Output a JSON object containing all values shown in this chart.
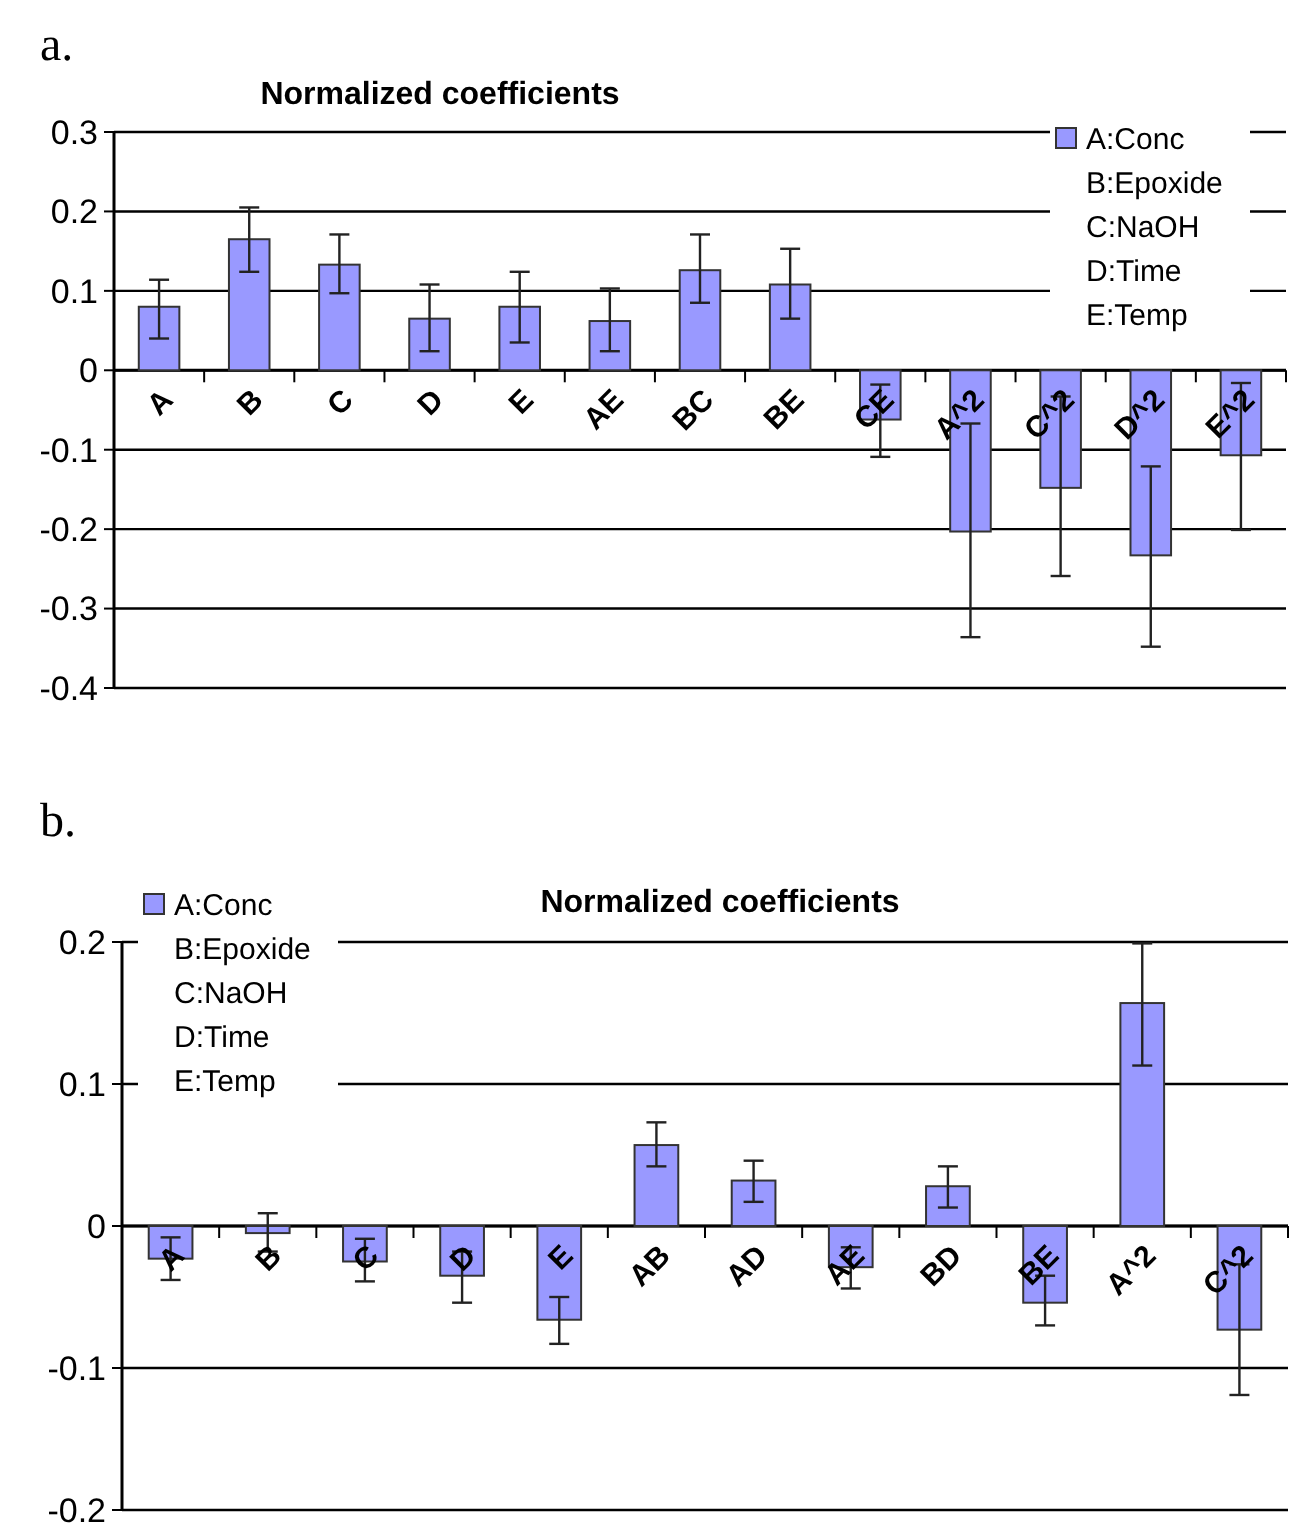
{
  "chart_data": [
    {
      "type": "bar",
      "title": "Normalized coefficients",
      "categories": [
        "A",
        "B",
        "C",
        "D",
        "E",
        "AE",
        "BC",
        "BE",
        "CE",
        "A^2",
        "C^2",
        "D^2",
        "E^2"
      ],
      "series": [
        {
          "name": "A:Conc",
          "color": "#9999ff",
          "values": [
            0.08,
            0.165,
            0.133,
            0.065,
            0.08,
            0.062,
            0.126,
            0.108,
            -0.062,
            -0.203,
            -0.148,
            -0.233,
            -0.107
          ],
          "errors": [
            [
              0.04,
              0.114
            ],
            [
              0.124,
              0.205
            ],
            [
              0.097,
              0.171
            ],
            [
              0.024,
              0.108
            ],
            [
              0.035,
              0.124
            ],
            [
              0.024,
              0.103
            ],
            [
              0.085,
              0.171
            ],
            [
              0.065,
              0.153
            ],
            [
              -0.109,
              -0.018
            ],
            [
              -0.336,
              -0.067
            ],
            [
              -0.259,
              -0.033
            ],
            [
              -0.348,
              -0.121
            ],
            [
              -0.201,
              -0.016
            ]
          ]
        }
      ],
      "ylim": [
        -0.4,
        0.3
      ],
      "yticks": [
        -0.4,
        -0.3,
        -0.2,
        -0.1,
        0,
        0.1,
        0.2,
        0.3
      ],
      "grid": "y",
      "legend": "top right",
      "annotations": [
        "a.",
        "B:Epoxide",
        "C:NaOH",
        "D:Time",
        "E:Temp"
      ]
    },
    {
      "type": "bar",
      "title": "Normalized coefficients",
      "categories": [
        "A",
        "B",
        "C",
        "D",
        "E",
        "AB",
        "AD",
        "AE",
        "BD",
        "BE",
        "A^2",
        "C^2"
      ],
      "series": [
        {
          "name": "A:Conc",
          "color": "#9999ff",
          "values": [
            -0.023,
            -0.005,
            -0.025,
            -0.035,
            -0.066,
            0.057,
            0.032,
            -0.029,
            0.028,
            -0.054,
            0.157,
            -0.073
          ],
          "errors": [
            [
              -0.038,
              -0.008
            ],
            [
              -0.018,
              0.009
            ],
            [
              -0.039,
              -0.009
            ],
            [
              -0.054,
              -0.018
            ],
            [
              -0.083,
              -0.05
            ],
            [
              0.042,
              0.073
            ],
            [
              0.017,
              0.046
            ],
            [
              -0.044,
              -0.015
            ],
            [
              0.013,
              0.042
            ],
            [
              -0.07,
              -0.035
            ],
            [
              0.113,
              0.199
            ],
            [
              -0.119,
              -0.027
            ]
          ]
        }
      ],
      "ylim": [
        -0.2,
        0.2
      ],
      "yticks": [
        -0.2,
        -0.1,
        0,
        0.1,
        0.2
      ],
      "grid": "y",
      "legend": "top left",
      "annotations": [
        "b.",
        "B:Epoxide",
        "C:NaOH",
        "D:Time",
        "E:Temp"
      ]
    }
  ]
}
